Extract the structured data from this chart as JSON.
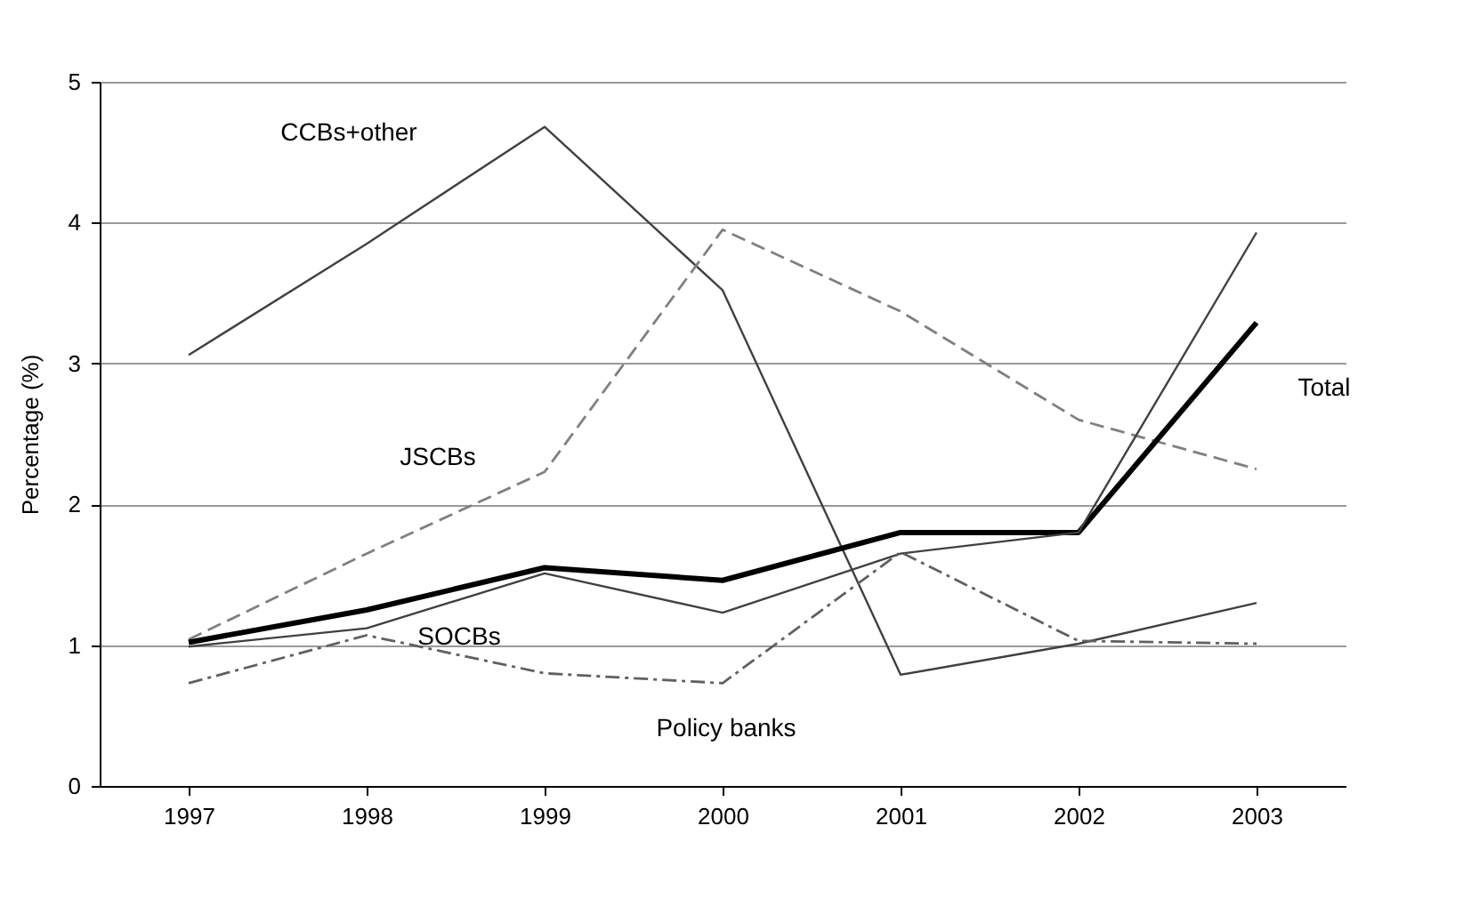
{
  "chart_data": {
    "type": "line",
    "ylabel": "Percentage (%)",
    "categories": [
      "1997",
      "1998",
      "1999",
      "2000",
      "2001",
      "2002",
      "2003"
    ],
    "ylim": [
      0,
      5
    ],
    "yticks": [
      0,
      1,
      2,
      3,
      4,
      5
    ],
    "grid": "y",
    "legend": false,
    "series": [
      {
        "name": "CCBs+other",
        "color": "#404040",
        "line_style": "solid",
        "values": [
          3.06,
          3.85,
          4.68,
          3.52,
          0.79,
          1.01,
          1.3
        ]
      },
      {
        "name": "JSCBs",
        "color": "#808080",
        "line_style": "dashed",
        "values": [
          1.04,
          1.65,
          2.23,
          3.95,
          3.37,
          2.6,
          2.25
        ]
      },
      {
        "name": "Total",
        "color": "#000000",
        "line_style": "solid",
        "values": [
          1.02,
          1.25,
          1.55,
          1.46,
          1.8,
          1.8,
          3.29
        ]
      },
      {
        "name": "SOCBs",
        "color": "#404040",
        "line_style": "solid",
        "values": [
          0.99,
          1.12,
          1.51,
          1.23,
          1.65,
          1.8,
          3.93
        ]
      },
      {
        "name": "Policy banks",
        "color": "#606060",
        "line_style": "dashdot",
        "values": [
          0.73,
          1.07,
          0.8,
          0.73,
          1.66,
          1.03,
          1.01
        ]
      }
    ]
  }
}
